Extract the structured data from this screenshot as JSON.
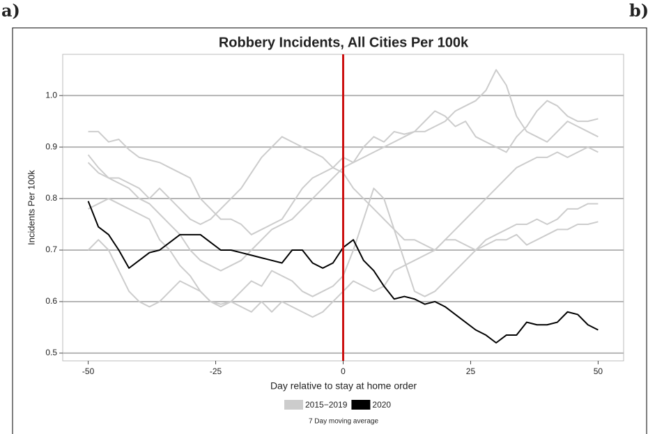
{
  "chart_data": {
    "type": "line",
    "panel_labels": [
      "a)",
      "b)"
    ],
    "title": "Robbery Incidents, All Cities Per 100k",
    "x_label": "Day relative to stay at home order",
    "y_label": "Incidents Per 100k",
    "annotation": "7 Day moving average",
    "x": [
      -50,
      -48,
      -46,
      -44,
      -42,
      -40,
      -38,
      -36,
      -34,
      -32,
      -30,
      -28,
      -26,
      -24,
      -22,
      -20,
      -18,
      -16,
      -14,
      -12,
      -10,
      -8,
      -6,
      -4,
      -2,
      0,
      2,
      4,
      6,
      8,
      10,
      12,
      14,
      16,
      18,
      20,
      22,
      24,
      26,
      28,
      30,
      32,
      34,
      36,
      38,
      40,
      42,
      44,
      46,
      48,
      50
    ],
    "series": [
      {
        "name": "2015−2019",
        "color": "#cccccc",
        "values": [
          [
            0.93,
            0.93,
            0.91,
            0.915,
            0.895,
            0.88,
            0.875,
            0.87,
            0.86,
            0.85,
            0.84,
            0.8,
            0.78,
            0.76,
            0.76,
            0.75,
            0.73,
            0.74,
            0.75,
            0.76,
            0.79,
            0.82,
            0.84,
            0.85,
            0.86,
            0.88,
            0.87,
            0.9,
            0.92,
            0.91,
            0.93,
            0.925,
            0.93,
            0.95,
            0.97,
            0.96,
            0.94,
            0.95,
            0.92,
            0.91,
            0.9,
            0.89,
            0.92,
            0.94,
            0.97,
            0.99,
            0.98,
            0.96,
            0.95,
            0.95,
            0.955
          ],
          [
            0.885,
            0.86,
            0.84,
            0.83,
            0.82,
            0.8,
            0.79,
            0.77,
            0.75,
            0.73,
            0.7,
            0.68,
            0.67,
            0.66,
            0.67,
            0.68,
            0.7,
            0.72,
            0.74,
            0.75,
            0.76,
            0.78,
            0.8,
            0.82,
            0.84,
            0.86,
            0.87,
            0.88,
            0.89,
            0.9,
            0.91,
            0.92,
            0.93,
            0.93,
            0.94,
            0.95,
            0.97,
            0.98,
            0.99,
            1.01,
            1.05,
            1.02,
            0.96,
            0.93,
            0.92,
            0.91,
            0.93,
            0.95,
            0.94,
            0.93,
            0.92
          ],
          [
            0.87,
            0.85,
            0.84,
            0.84,
            0.83,
            0.82,
            0.8,
            0.82,
            0.8,
            0.78,
            0.76,
            0.75,
            0.76,
            0.78,
            0.8,
            0.82,
            0.85,
            0.88,
            0.9,
            0.92,
            0.91,
            0.9,
            0.89,
            0.88,
            0.86,
            0.85,
            0.82,
            0.8,
            0.78,
            0.76,
            0.74,
            0.72,
            0.72,
            0.71,
            0.7,
            0.72,
            0.74,
            0.76,
            0.78,
            0.8,
            0.82,
            0.84,
            0.86,
            0.87,
            0.88,
            0.88,
            0.89,
            0.88,
            0.89,
            0.9,
            0.89
          ],
          [
            0.7,
            0.72,
            0.7,
            0.66,
            0.62,
            0.6,
            0.59,
            0.6,
            0.62,
            0.64,
            0.63,
            0.62,
            0.6,
            0.595,
            0.6,
            0.59,
            0.58,
            0.6,
            0.58,
            0.6,
            0.59,
            0.58,
            0.57,
            0.58,
            0.6,
            0.62,
            0.64,
            0.63,
            0.62,
            0.63,
            0.66,
            0.67,
            0.68,
            0.69,
            0.7,
            0.72,
            0.72,
            0.71,
            0.7,
            0.72,
            0.73,
            0.74,
            0.75,
            0.75,
            0.76,
            0.75,
            0.76,
            0.78,
            0.78,
            0.79,
            0.79
          ],
          [
            0.78,
            0.79,
            0.8,
            0.79,
            0.78,
            0.77,
            0.76,
            0.72,
            0.7,
            0.67,
            0.65,
            0.62,
            0.6,
            0.59,
            0.6,
            0.62,
            0.64,
            0.63,
            0.66,
            0.65,
            0.64,
            0.62,
            0.61,
            0.62,
            0.63,
            0.65,
            0.7,
            0.76,
            0.82,
            0.8,
            0.74,
            0.68,
            0.62,
            0.61,
            0.62,
            0.64,
            0.66,
            0.68,
            0.7,
            0.71,
            0.72,
            0.72,
            0.73,
            0.71,
            0.72,
            0.73,
            0.74,
            0.74,
            0.75,
            0.75,
            0.755
          ]
        ]
      },
      {
        "name": "2020",
        "color": "#000000",
        "values": [
          0.795,
          0.745,
          0.73,
          0.7,
          0.665,
          0.68,
          0.695,
          0.7,
          0.715,
          0.73,
          0.73,
          0.73,
          0.715,
          0.7,
          0.7,
          0.695,
          0.69,
          0.685,
          0.68,
          0.675,
          0.7,
          0.7,
          0.675,
          0.665,
          0.675,
          0.705,
          0.72,
          0.68,
          0.66,
          0.63,
          0.605,
          0.61,
          0.605,
          0.595,
          0.6,
          0.59,
          0.575,
          0.56,
          0.545,
          0.535,
          0.52,
          0.535,
          0.535,
          0.56,
          0.555,
          0.555,
          0.56,
          0.58,
          0.575,
          0.555,
          0.545
        ]
      }
    ],
    "vline": {
      "x": 0,
      "color": "#cc1111"
    },
    "xlim": [
      -55,
      55
    ],
    "xticks": [
      -50,
      -25,
      0,
      25,
      50
    ],
    "ylim": [
      0.485,
      1.08
    ],
    "yticks": [
      0.5,
      0.6,
      0.7,
      0.8,
      0.9,
      {
        "value": 1,
        "label": "1.0"
      }
    ],
    "grid": true
  }
}
